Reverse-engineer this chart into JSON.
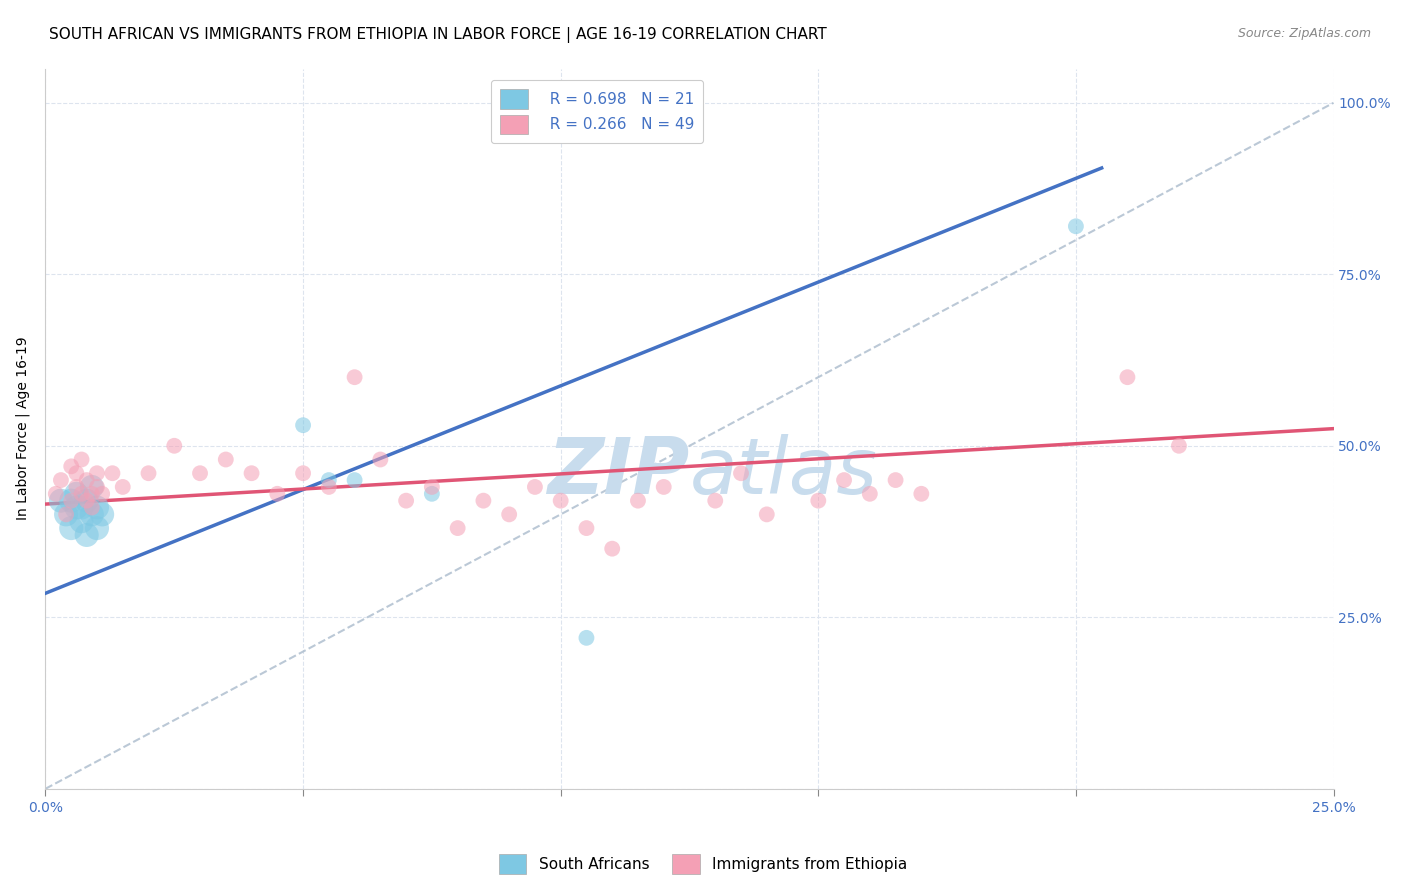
{
  "title": "SOUTH AFRICAN VS IMMIGRANTS FROM ETHIOPIA IN LABOR FORCE | AGE 16-19 CORRELATION CHART",
  "source": "Source: ZipAtlas.com",
  "ylabel": "In Labor Force | Age 16-19",
  "xlim": [
    0.0,
    0.25
  ],
  "ylim": [
    0.0,
    1.05
  ],
  "xticks": [
    0.0,
    0.05,
    0.1,
    0.15,
    0.2,
    0.25
  ],
  "xtick_labels": [
    "0.0%",
    "",
    "",
    "",
    "",
    "25.0%"
  ],
  "yticks": [
    0.0,
    0.25,
    0.5,
    0.75,
    1.0
  ],
  "ytick_labels_right": [
    "",
    "25.0%",
    "50.0%",
    "75.0%",
    "100.0%"
  ],
  "blue_color": "#7ec8e3",
  "pink_color": "#f4a0b5",
  "blue_line_color": "#4472c4",
  "pink_line_color": "#e05575",
  "blue_R": 0.698,
  "blue_N": 21,
  "pink_R": 0.266,
  "pink_N": 49,
  "watermark_zip": "ZIP",
  "watermark_atlas": "atlas",
  "watermark_color": "#c8dced",
  "blue_scatter_x": [
    0.003,
    0.004,
    0.005,
    0.005,
    0.006,
    0.006,
    0.007,
    0.007,
    0.008,
    0.008,
    0.009,
    0.009,
    0.01,
    0.01,
    0.011,
    0.05,
    0.055,
    0.06,
    0.075,
    0.105,
    0.2
  ],
  "blue_scatter_y": [
    0.42,
    0.4,
    0.42,
    0.38,
    0.41,
    0.43,
    0.39,
    0.41,
    0.42,
    0.37,
    0.4,
    0.44,
    0.41,
    0.38,
    0.4,
    0.53,
    0.45,
    0.45,
    0.43,
    0.22,
    0.82
  ],
  "blue_sizes": [
    300,
    300,
    300,
    300,
    300,
    300,
    300,
    300,
    300,
    300,
    300,
    300,
    300,
    300,
    300,
    130,
    130,
    130,
    130,
    130,
    130
  ],
  "pink_scatter_x": [
    0.002,
    0.003,
    0.004,
    0.005,
    0.005,
    0.006,
    0.006,
    0.007,
    0.007,
    0.008,
    0.008,
    0.009,
    0.009,
    0.01,
    0.01,
    0.011,
    0.013,
    0.015,
    0.02,
    0.025,
    0.03,
    0.035,
    0.04,
    0.045,
    0.05,
    0.055,
    0.06,
    0.065,
    0.07,
    0.075,
    0.08,
    0.085,
    0.09,
    0.095,
    0.1,
    0.105,
    0.11,
    0.115,
    0.12,
    0.13,
    0.135,
    0.14,
    0.15,
    0.155,
    0.16,
    0.165,
    0.17,
    0.21,
    0.22
  ],
  "pink_scatter_y": [
    0.43,
    0.45,
    0.4,
    0.42,
    0.47,
    0.44,
    0.46,
    0.43,
    0.48,
    0.42,
    0.45,
    0.43,
    0.41,
    0.44,
    0.46,
    0.43,
    0.46,
    0.44,
    0.46,
    0.5,
    0.46,
    0.48,
    0.46,
    0.43,
    0.46,
    0.44,
    0.6,
    0.48,
    0.42,
    0.44,
    0.38,
    0.42,
    0.4,
    0.44,
    0.42,
    0.38,
    0.35,
    0.42,
    0.44,
    0.42,
    0.46,
    0.4,
    0.42,
    0.45,
    0.43,
    0.45,
    0.43,
    0.6,
    0.5
  ],
  "blue_line_x": [
    0.0,
    0.205
  ],
  "blue_line_y": [
    0.285,
    0.905
  ],
  "pink_line_x": [
    0.0,
    0.25
  ],
  "pink_line_y": [
    0.415,
    0.525
  ],
  "diag_line_x": [
    0.0,
    0.25
  ],
  "diag_line_y": [
    0.0,
    1.0
  ],
  "background_color": "#ffffff",
  "grid_color": "#dde4ee",
  "title_fontsize": 11,
  "axis_label_fontsize": 10,
  "tick_fontsize": 10,
  "legend_fontsize": 11,
  "marker_size": 130,
  "marker_alpha": 0.55,
  "axis_tick_color": "#4472c4"
}
